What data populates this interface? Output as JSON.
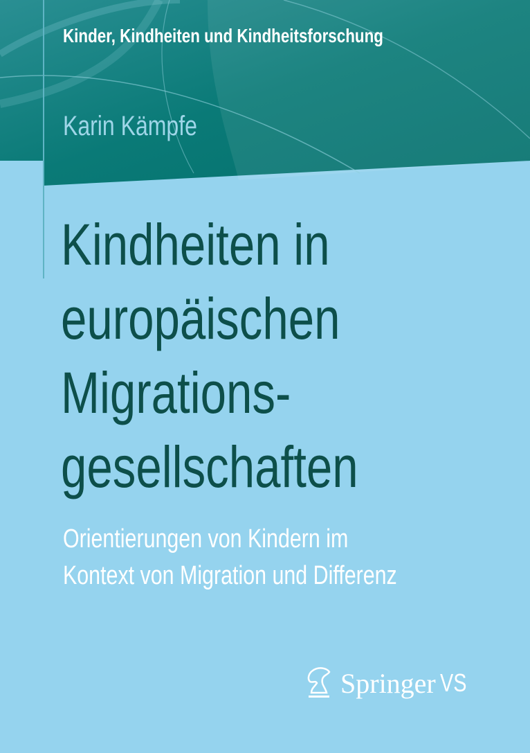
{
  "series": "Kinder, Kindheiten und Kindheitsforschung",
  "author": "Karin Kämpfe",
  "title_lines": [
    "Kindheiten in",
    "europäischen",
    "Migrations-",
    "gesellschaften"
  ],
  "subtitle_lines": [
    "Orientierungen von Kindern im",
    "Kontext von Migration und Differenz"
  ],
  "publisher": {
    "name": "Springer",
    "imprint": "VS",
    "icon": "knight-horse-icon"
  },
  "colors": {
    "band": "#0b7b78",
    "background": "#95d3ee",
    "title": "#0d4f4a"
  }
}
